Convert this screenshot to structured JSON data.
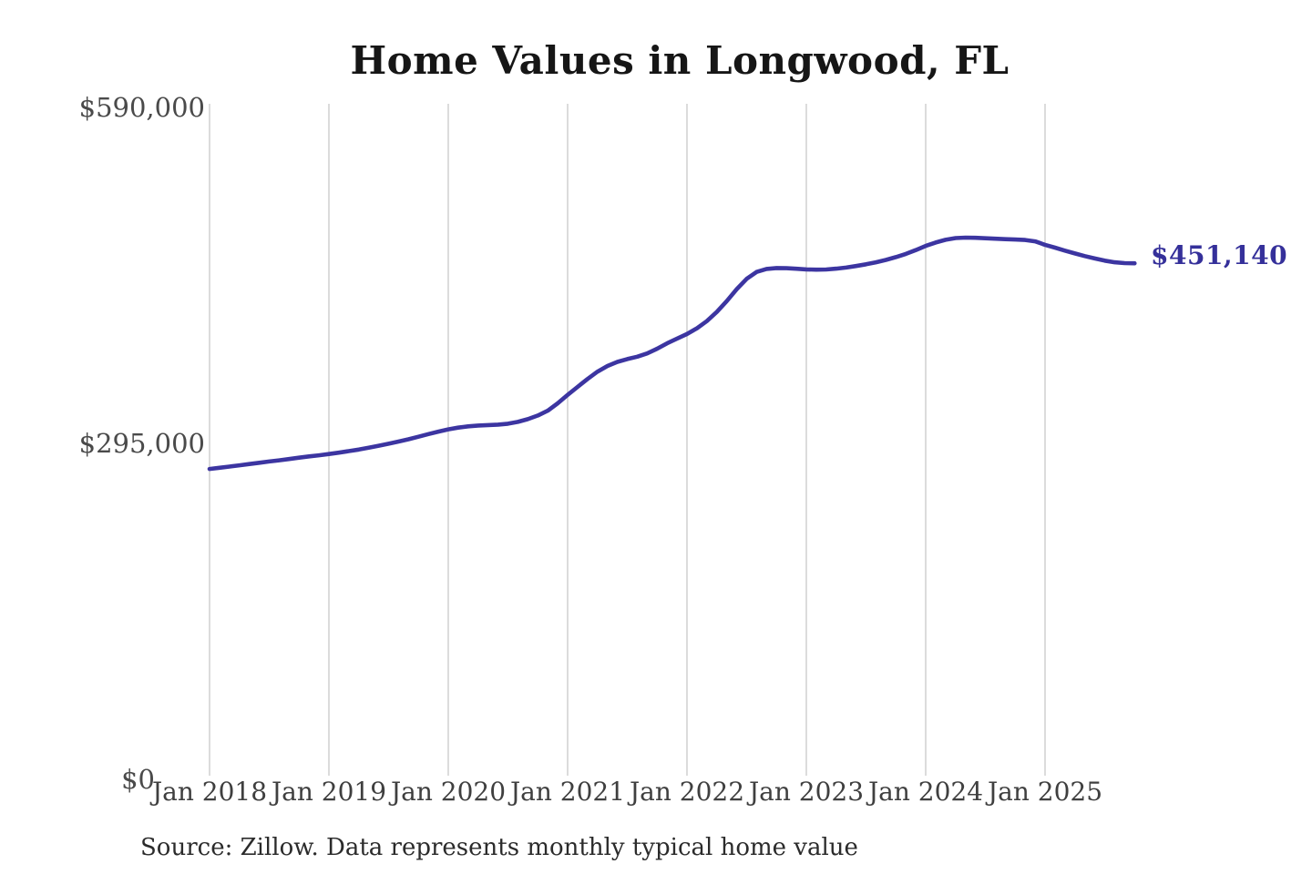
{
  "title": "Home Values in Longwood, FL",
  "source_note": "Source: Zillow. Data represents monthly typical home value",
  "end_label": "$451,140",
  "colors": {
    "line": "#3c35a1",
    "end_label_text": "#35309a",
    "grid": "#cccccc",
    "axis_text": "#4a4a4a",
    "title_text": "#161616",
    "source_text": "#2b2b2b",
    "background": "#ffffff"
  },
  "chart_data": {
    "type": "line",
    "title": "Home Values in Longwood, FL",
    "x_start_month": "Jan 2018",
    "x_interval": "monthly",
    "x_end_month": "Oct 2025",
    "x_tick_labels": [
      "Jan 2018",
      "Jan 2019",
      "Jan 2020",
      "Jan 2021",
      "Jan 2022",
      "Jan 2023",
      "Jan 2024",
      "Jan 2025"
    ],
    "y_ticks": [
      0,
      295000,
      590000
    ],
    "y_tick_labels": [
      "$0",
      "$295,000",
      "$590,000"
    ],
    "ylim": [
      0,
      590000
    ],
    "grid": "vertical-only",
    "legend": "none",
    "series": [
      {
        "name": "Monthly typical home value",
        "values": [
          271000,
          272000,
          273100,
          274200,
          275300,
          276400,
          277500,
          278600,
          279700,
          280900,
          282000,
          283000,
          284100,
          285300,
          286600,
          288000,
          289600,
          291300,
          293100,
          295000,
          297000,
          299200,
          301500,
          303700,
          305700,
          307200,
          308300,
          309000,
          309400,
          309800,
          310600,
          312200,
          314600,
          317800,
          322000,
          328500,
          335800,
          342800,
          349800,
          356200,
          361200,
          364800,
          367200,
          369300,
          372200,
          376300,
          381000,
          385200,
          389200,
          394200,
          400500,
          408500,
          418000,
          428500,
          437500,
          443500,
          446200,
          447000,
          446800,
          446300,
          445800,
          445500,
          445700,
          446400,
          447400,
          448700,
          450200,
          452000,
          454100,
          456500,
          459300,
          462700,
          466300,
          469300,
          471700,
          473200,
          473600,
          473400,
          473000,
          472600,
          472200,
          471900,
          471500,
          470300,
          467300,
          464800,
          462200,
          459700,
          457400,
          455300,
          453400,
          452000,
          451300,
          451140
        ]
      }
    ],
    "end_annotation": {
      "text": "$451,140",
      "value": 451140
    }
  }
}
